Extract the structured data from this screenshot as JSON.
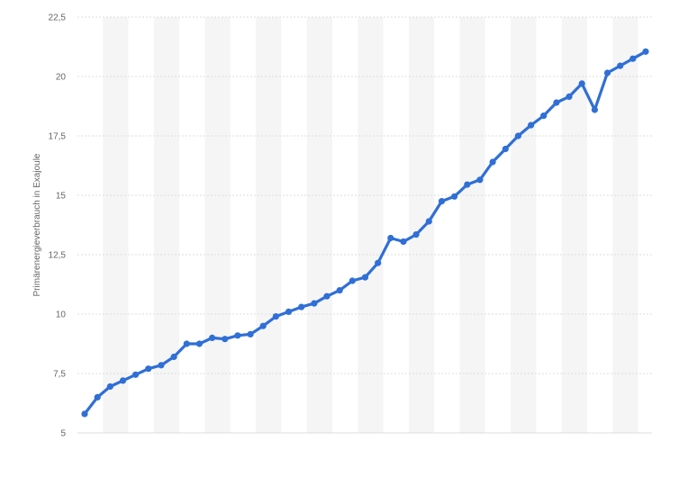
{
  "chart_data": {
    "type": "line",
    "title": "",
    "xlabel": "",
    "ylabel": "Primärenergieverbrauch in Exajoule",
    "ylim": [
      5,
      22.5
    ],
    "yticks": [
      5,
      7.5,
      10,
      12.5,
      15,
      17.5,
      20,
      22.5
    ],
    "ytick_labels": [
      "5",
      "7,5",
      "10",
      "12,5",
      "15",
      "17,5",
      "20",
      "22,5"
    ],
    "grid": true,
    "line_color": "#2f6fd6",
    "values": [
      5.8,
      6.5,
      6.95,
      7.2,
      7.45,
      7.7,
      7.85,
      8.2,
      8.75,
      8.75,
      9.0,
      8.95,
      9.1,
      9.15,
      9.5,
      9.9,
      10.1,
      10.3,
      10.45,
      10.75,
      11.0,
      11.4,
      11.55,
      12.15,
      13.2,
      13.05,
      13.35,
      13.9,
      14.75,
      14.95,
      15.45,
      15.65,
      16.4,
      16.95,
      17.5,
      17.95,
      18.35,
      18.9,
      19.15,
      19.7,
      18.6,
      20.15,
      20.45,
      20.75,
      21.05
    ]
  }
}
